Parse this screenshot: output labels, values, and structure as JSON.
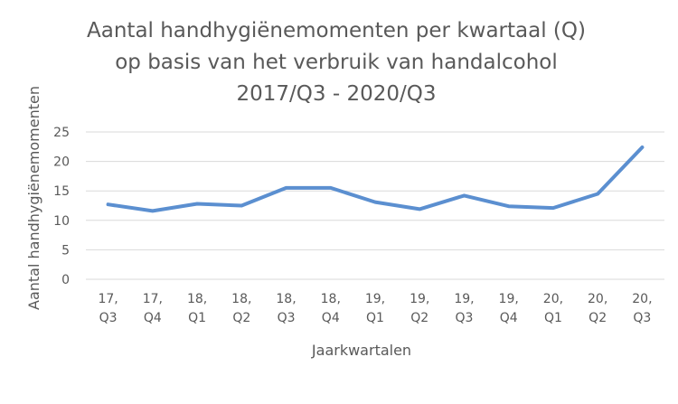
{
  "chart_data": {
    "type": "line",
    "title_lines": [
      "Aantal handhygiënemomenten  per kwartaal (Q)",
      "op basis van het verbruik van handalcohol",
      "2017/Q3 - 2020/Q3"
    ],
    "xlabel": "Jaarkwartalen",
    "ylabel": "Aantal handhygiënemomenten",
    "ylim": [
      0,
      25
    ],
    "yticks": [
      0,
      5,
      10,
      15,
      20,
      25
    ],
    "grid": true,
    "legend": "none",
    "categories": [
      [
        "17,",
        "Q3"
      ],
      [
        "17,",
        "Q4"
      ],
      [
        "18,",
        "Q1"
      ],
      [
        "18,",
        "Q2"
      ],
      [
        "18,",
        "Q3"
      ],
      [
        "18,",
        "Q4"
      ],
      [
        "19,",
        "Q1"
      ],
      [
        "19,",
        "Q2"
      ],
      [
        "19,",
        "Q3"
      ],
      [
        "19,",
        "Q4"
      ],
      [
        "20,",
        "Q1"
      ],
      [
        "20,",
        "Q2"
      ],
      [
        "20,",
        "Q3"
      ]
    ],
    "series": [
      {
        "values": [
          12.7,
          11.6,
          12.8,
          12.5,
          15.5,
          15.5,
          13.1,
          11.9,
          14.2,
          12.4,
          12.1,
          14.5,
          22.4
        ],
        "color": "#5B8FD0"
      }
    ],
    "colors": {
      "grid": "#D9D9D9",
      "text": "#595959"
    }
  }
}
